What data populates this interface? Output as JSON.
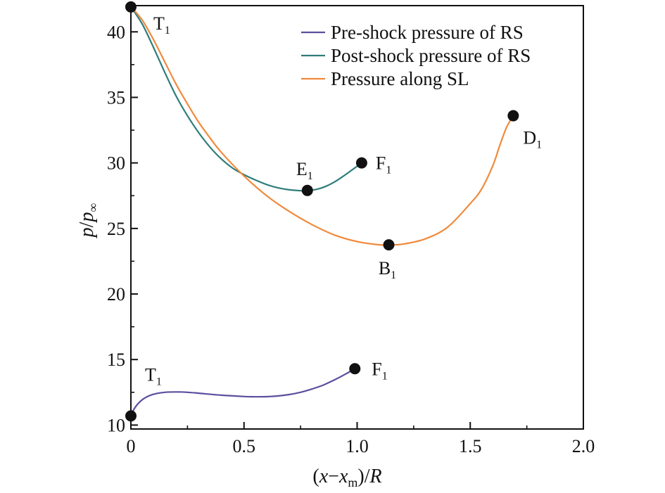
{
  "chart_data": {
    "type": "line",
    "title": "",
    "xlabel": {
      "parts": [
        {
          "text": "(",
          "style": "normal"
        },
        {
          "text": "x",
          "style": "italic"
        },
        {
          "text": "−",
          "style": "normal"
        },
        {
          "text": "x",
          "style": "italic"
        },
        {
          "text": "m",
          "style": "sub"
        },
        {
          "text": ")/",
          "style": "normal"
        },
        {
          "text": "R",
          "style": "italic"
        }
      ]
    },
    "ylabel": {
      "parts": [
        {
          "text": "p",
          "style": "italic"
        },
        {
          "text": "/",
          "style": "normal"
        },
        {
          "text": "p",
          "style": "italic"
        },
        {
          "text": "∞",
          "style": "sub"
        }
      ]
    },
    "xlim": [
      0,
      2.0
    ],
    "ylim": [
      9.7,
      42
    ],
    "x_ticks": [
      0,
      0.5,
      1.0,
      1.5,
      2.0
    ],
    "x_tick_labels": [
      "0",
      "0.5",
      "1.0",
      "1.5",
      "2.0"
    ],
    "x_minor_ticks": [
      0.25,
      0.75,
      1.25,
      1.75
    ],
    "y_ticks": [
      10,
      15,
      20,
      25,
      30,
      35,
      40
    ],
    "y_tick_labels": [
      "10",
      "15",
      "20",
      "25",
      "30",
      "35",
      "40"
    ],
    "y_minor_ticks": [
      12.5,
      17.5,
      22.5,
      27.5,
      32.5,
      37.5
    ],
    "grid": false,
    "legend_position": "top-right",
    "series": [
      {
        "name": "Pre-shock pressure of RS",
        "color": "#5b4f9e",
        "x": [
          0.0,
          0.01,
          0.03,
          0.06,
          0.1,
          0.15,
          0.2,
          0.25,
          0.3,
          0.4,
          0.5,
          0.55,
          0.6,
          0.65,
          0.7,
          0.75,
          0.8,
          0.85,
          0.9,
          0.95,
          0.99
        ],
        "y": [
          10.7,
          11.1,
          11.6,
          12.05,
          12.35,
          12.5,
          12.53,
          12.5,
          12.43,
          12.28,
          12.18,
          12.16,
          12.17,
          12.22,
          12.33,
          12.5,
          12.75,
          13.05,
          13.45,
          13.9,
          14.3
        ]
      },
      {
        "name": "Post-shock pressure of RS",
        "color": "#2e7d7b",
        "x": [
          0.0,
          0.05,
          0.1,
          0.15,
          0.2,
          0.25,
          0.3,
          0.35,
          0.4,
          0.45,
          0.5,
          0.55,
          0.6,
          0.65,
          0.7,
          0.75,
          0.78,
          0.82,
          0.86,
          0.9,
          0.94,
          0.98,
          1.02
        ],
        "y": [
          41.9,
          40.6,
          38.8,
          36.9,
          35.1,
          33.6,
          32.3,
          31.2,
          30.3,
          29.6,
          29.1,
          28.7,
          28.35,
          28.1,
          27.95,
          27.88,
          27.9,
          27.98,
          28.2,
          28.55,
          29.0,
          29.5,
          30.0
        ]
      },
      {
        "name": "Pressure along SL",
        "color": "#f08a3c",
        "x": [
          0.0,
          0.05,
          0.1,
          0.15,
          0.2,
          0.25,
          0.3,
          0.35,
          0.4,
          0.5,
          0.6,
          0.7,
          0.8,
          0.9,
          1.0,
          1.1,
          1.14,
          1.2,
          1.3,
          1.4,
          1.5,
          1.55,
          1.6,
          1.63,
          1.66,
          1.69
        ],
        "y": [
          41.9,
          40.9,
          39.4,
          37.7,
          36.0,
          34.5,
          33.1,
          31.9,
          30.8,
          29.0,
          27.5,
          26.3,
          25.3,
          24.5,
          24.0,
          23.75,
          23.75,
          23.8,
          24.2,
          25.1,
          26.9,
          28.0,
          29.8,
          31.3,
          32.7,
          33.6
        ]
      }
    ],
    "markers": [
      {
        "id": "T1_top",
        "x": 0.0,
        "y": 41.9,
        "label_main": "T",
        "label_sub": "1",
        "label_anchor": "start"
      },
      {
        "id": "E1",
        "x": 0.78,
        "y": 27.9,
        "label_main": "E",
        "label_sub": "1",
        "label_anchor": "middle"
      },
      {
        "id": "F1_top",
        "x": 1.02,
        "y": 30.0,
        "label_main": "F",
        "label_sub": "1",
        "label_anchor": "start"
      },
      {
        "id": "B1",
        "x": 1.14,
        "y": 23.75,
        "label_main": "B",
        "label_sub": "1",
        "label_anchor": "middle"
      },
      {
        "id": "D1",
        "x": 1.69,
        "y": 33.6,
        "label_main": "D",
        "label_sub": "1",
        "label_anchor": "start"
      },
      {
        "id": "T1_bottom",
        "x": 0.0,
        "y": 10.7,
        "label_main": "T",
        "label_sub": "1",
        "label_anchor": "start"
      },
      {
        "id": "F1_bottom",
        "x": 0.99,
        "y": 14.3,
        "label_main": "F",
        "label_sub": "1",
        "label_anchor": "start"
      }
    ]
  }
}
